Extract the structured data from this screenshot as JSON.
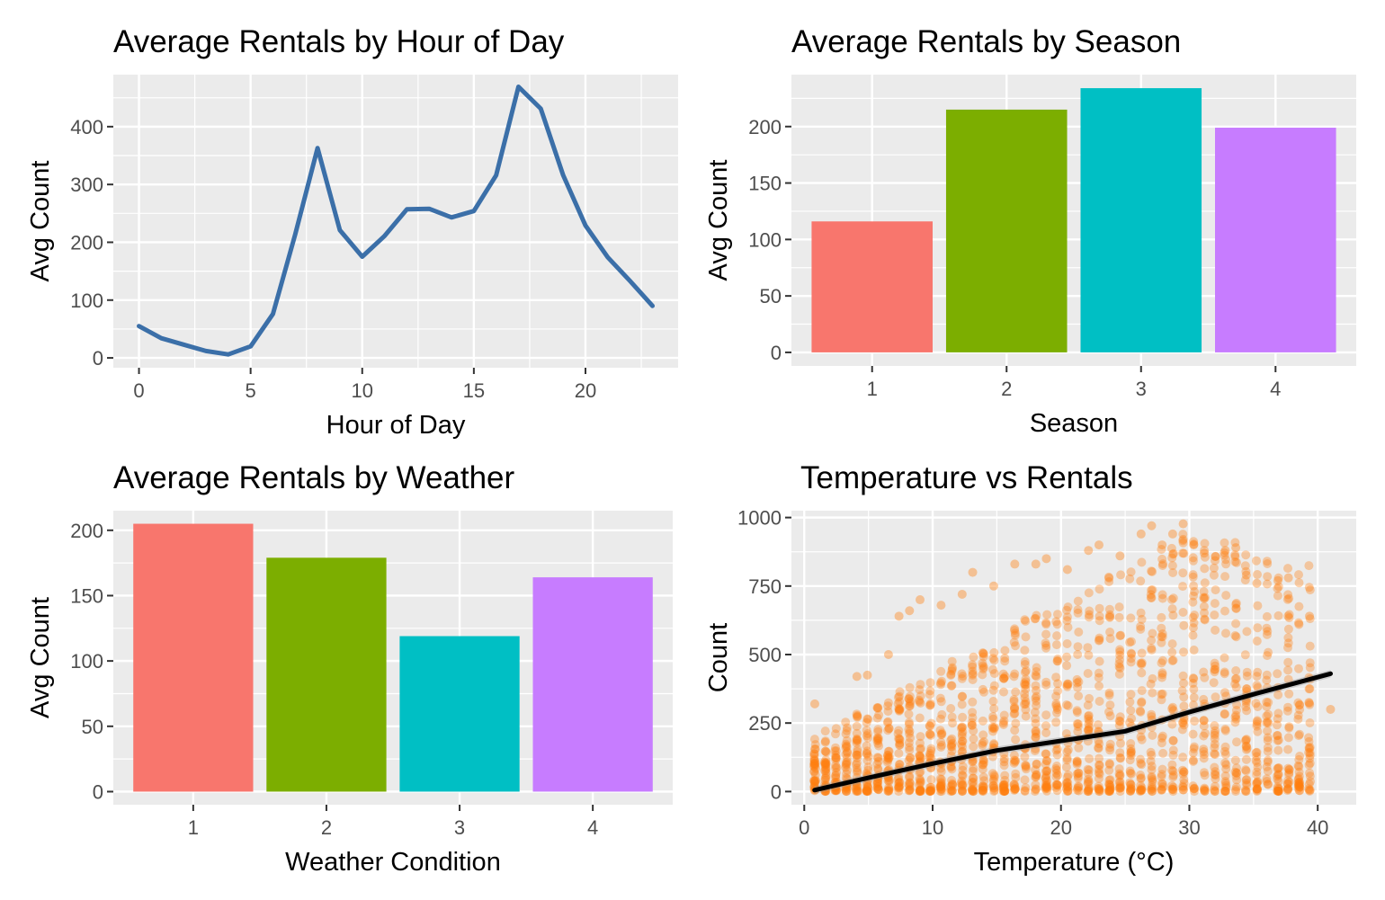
{
  "chart_data": [
    {
      "type": "line",
      "title": "Average Rentals by Hour of Day",
      "xlabel": "Hour of Day",
      "ylabel": "Avg Count",
      "xlim": [
        -1.15,
        24.15
      ],
      "ylim": [
        -17,
        490
      ],
      "x_ticks": [
        0,
        5,
        10,
        15,
        20
      ],
      "y_ticks": [
        0,
        100,
        200,
        300,
        400
      ],
      "grid": true,
      "legend": "none",
      "color": "#3B6FA8",
      "series": [
        {
          "x": [
            0,
            1,
            2,
            3,
            4,
            5,
            6,
            7,
            8,
            9,
            10,
            11,
            12,
            13,
            14,
            15,
            16,
            17,
            18,
            19,
            20,
            21,
            22,
            23
          ],
          "values": [
            55,
            34,
            23,
            12,
            6,
            20,
            76,
            214,
            363,
            221,
            175,
            211,
            257,
            258,
            243,
            254,
            316,
            469,
            431,
            316,
            229,
            174,
            133,
            90
          ]
        }
      ]
    },
    {
      "type": "bar",
      "title": "Average Rentals by Season",
      "xlabel": "Season",
      "ylabel": "Avg Count",
      "categories": [
        "1",
        "2",
        "3",
        "4"
      ],
      "values": [
        116,
        215,
        234,
        199
      ],
      "colors": [
        "#F8766D",
        "#7CAE00",
        "#00BFC4",
        "#C77CFF"
      ],
      "ylim": [
        -12,
        246
      ],
      "y_ticks": [
        0,
        50,
        100,
        150,
        200
      ],
      "grid": true,
      "legend": "none"
    },
    {
      "type": "bar",
      "title": "Average Rentals by Weather",
      "xlabel": "Weather Condition",
      "ylabel": "Avg Count",
      "categories": [
        "1",
        "2",
        "3",
        "4"
      ],
      "values": [
        205,
        179,
        119,
        164
      ],
      "colors": [
        "#F8766D",
        "#7CAE00",
        "#00BFC4",
        "#C77CFF"
      ],
      "ylim": [
        -10,
        215
      ],
      "y_ticks": [
        0,
        50,
        100,
        150,
        200
      ],
      "grid": true,
      "legend": "none"
    },
    {
      "type": "scatter",
      "title": "Temperature vs Rentals",
      "xlabel": "Temperature (°C)",
      "ylabel": "Count",
      "xlim": [
        -1,
        43
      ],
      "ylim": [
        -48,
        1025
      ],
      "x_ticks": [
        0,
        10,
        20,
        30,
        40
      ],
      "y_ticks": [
        0,
        250,
        500,
        750,
        1000
      ],
      "grid": true,
      "legend": "none",
      "point_color": "#FF7F0E",
      "trend_color": "#000000",
      "trend": {
        "x": [
          0.8,
          5,
          10,
          15,
          20,
          25,
          30,
          35,
          41
        ],
        "values": [
          5,
          50,
          102,
          150,
          185,
          220,
          290,
          355,
          430
        ]
      },
      "points_note": "dense cloud of several thousand points (temperature 0.8–41, count 1–977)",
      "sample_outliers": {
        "x": [
          0.82,
          0.82,
          1.64,
          4.1,
          4.92,
          6.56,
          7.38,
          8.2,
          9.02,
          10.66,
          12.3,
          13.12,
          14.76,
          16.4,
          18.04,
          18.86,
          20.5,
          22.14,
          22.96,
          24.6,
          26.24,
          27.06,
          27.88,
          28.7,
          29.52,
          30.34,
          31.16,
          32.8,
          33.62,
          34.44,
          35.26,
          36.9,
          37.72,
          38.54,
          39.36,
          41.0
        ],
        "values": [
          320,
          155,
          180,
          420,
          425,
          500,
          640,
          660,
          700,
          680,
          720,
          800,
          750,
          830,
          830,
          850,
          810,
          880,
          900,
          860,
          940,
          970,
          900,
          940,
          977,
          900,
          870,
          880,
          890,
          790,
          760,
          770,
          780,
          610,
          640,
          300
        ]
      }
    }
  ]
}
